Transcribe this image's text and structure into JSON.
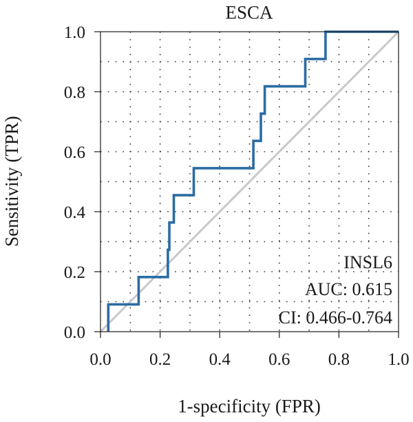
{
  "chart_data": {
    "type": "line",
    "title": "ESCA",
    "xlabel": "1-specificity (FPR)",
    "ylabel": "Sensitivity (TPR)",
    "xlim": [
      0,
      1
    ],
    "ylim": [
      0,
      1
    ],
    "x_ticks": [
      "0.0",
      "0.2",
      "0.4",
      "0.6",
      "0.8",
      "1.0"
    ],
    "y_ticks": [
      "0.0",
      "0.2",
      "0.4",
      "0.6",
      "0.8",
      "1.0"
    ],
    "grid": "dotted",
    "annotations": {
      "gene": "INSL6",
      "auc": "AUC: 0.615",
      "ci": "CI: 0.466-0.764"
    },
    "reference_line": {
      "x": [
        0,
        1
      ],
      "y": [
        0,
        1
      ],
      "color": "#c8c8cc"
    },
    "series": [
      {
        "color": "#2b6ca3",
        "x": [
          0.026,
          0.026,
          0.128,
          0.128,
          0.226,
          0.226,
          0.231,
          0.231,
          0.236,
          0.236,
          0.246,
          0.246,
          0.313,
          0.313,
          0.513,
          0.513,
          0.538,
          0.538,
          0.551,
          0.551,
          0.687,
          0.687,
          0.755,
          0.755,
          1.0
        ],
        "y": [
          0.0,
          0.091,
          0.091,
          0.182,
          0.182,
          0.273,
          0.273,
          0.364,
          0.364,
          0.364,
          0.364,
          0.455,
          0.455,
          0.545,
          0.545,
          0.636,
          0.636,
          0.727,
          0.727,
          0.818,
          0.818,
          0.909,
          0.909,
          1.0,
          1.0
        ]
      }
    ]
  }
}
